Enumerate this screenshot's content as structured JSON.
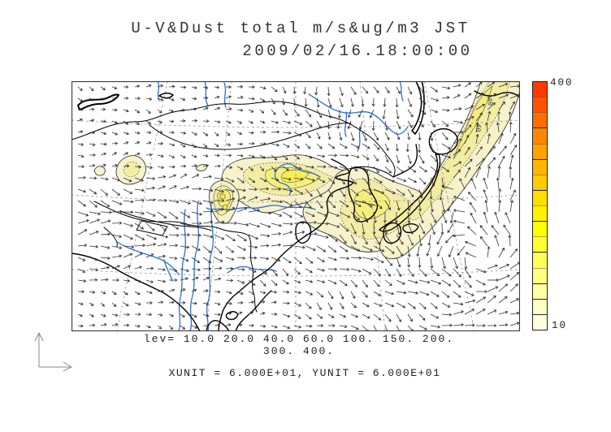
{
  "title_line1": "U-V&Dust total m/s&ug/m3 JST",
  "title_line2": "2009/02/16.18:00:00",
  "legend": {
    "lev_line1": "lev= 10.0 20.0 40.0 60.0 100. 150. 200.",
    "lev_line2": "300. 400.",
    "units_line": "XUNIT = 6.000E+01, YUNIT = 6.000E+01"
  },
  "colorbar": {
    "max_label": "400",
    "min_label": "10",
    "colors_top_to_bottom": [
      "#ff3800",
      "#ff5200",
      "#ff6d00",
      "#ff8700",
      "#ffa200",
      "#ffb600",
      "#ffca00",
      "#ffde00",
      "#fff200",
      "#ffff00",
      "#ffff33",
      "#ffff59",
      "#ffff80",
      "#ffffa6",
      "#ffffc4",
      "#ffffdb"
    ],
    "major_tick_after": [
      3,
      5,
      7,
      9,
      11,
      13,
      14,
      15
    ]
  },
  "map": {
    "contour_label": "40"
  },
  "chart_data": {
    "type": "map-contour-vector",
    "title": "U-V&Dust total m/s&ug/m3 JST",
    "timestamp": "2009/02/16.18:00:00",
    "variable": "Total dust concentration (ug/m3) shaded, with U-V wind vectors (m/s)",
    "region": "East Asia (China, Mongolia, Korea, Japan, India, Indochina)",
    "contour_levels": [
      10.0,
      20.0,
      40.0,
      60.0,
      100,
      150,
      200,
      300,
      400
    ],
    "colorbar_range": [
      10,
      400
    ],
    "colorbar_labels_shown": [
      "400",
      "10"
    ],
    "xunit": "6.000E+01",
    "yunit": "6.000E+01",
    "annotations": [
      "dust band (10-100+ ug/m3) stretching from central China across the Yellow Sea and Korea",
      "narrow dust band running northeast along northern Japan to the top-right map corner, inner contour labeled 40",
      "isolated dust maxima in western/central China with small intense core",
      "strong westerly wind vectors south of the Himalayas",
      "cyclonic wind circulation east of Japan"
    ],
    "grid": "dashed graticule",
    "legend_position": "right vertical colorbar"
  }
}
